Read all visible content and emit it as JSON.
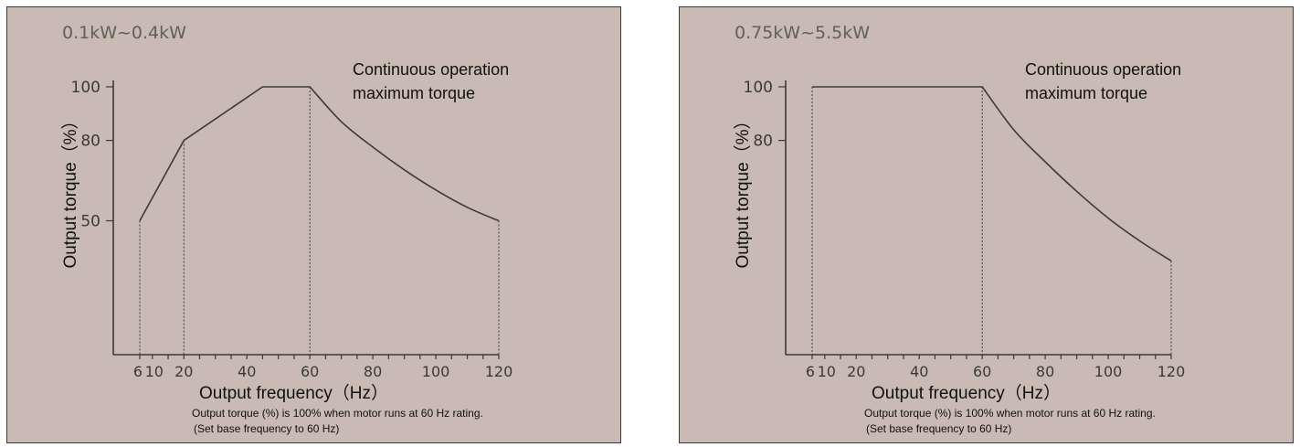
{
  "chart_data": [
    {
      "type": "line",
      "title": "0.1kW~0.4kW",
      "annotation": [
        "Continuous operation",
        "maximum torque"
      ],
      "xlabel": "Output frequency（Hz）",
      "ylabel": "Output torque（%）",
      "xticks": [
        6,
        10,
        20,
        40,
        60,
        80,
        100,
        120
      ],
      "yticks": [
        50,
        80,
        100
      ],
      "xlim": [
        0,
        120
      ],
      "ylim": [
        0,
        100
      ],
      "series": [
        {
          "x": [
            6,
            20,
            45,
            60,
            70,
            80,
            90,
            100,
            110,
            120
          ],
          "y": [
            50,
            80,
            100,
            100,
            87,
            77.5,
            69,
            61.5,
            55,
            50
          ]
        }
      ],
      "dotted_drops": [
        6,
        20,
        60,
        120
      ],
      "notes": [
        "Output torque (%) is 100% when motor runs at 60 Hz rating.",
        "(Set base frequency to 60 Hz)"
      ]
    },
    {
      "type": "line",
      "title": "0.75kW~5.5kW",
      "annotation": [
        "Continuous operation",
        "maximum torque"
      ],
      "xlabel": "Output frequency（Hz）",
      "ylabel": "Output torque（%）",
      "xticks": [
        6,
        10,
        20,
        40,
        60,
        80,
        100,
        120
      ],
      "yticks": [
        80,
        100
      ],
      "xlim": [
        0,
        120
      ],
      "ylim": [
        0,
        100
      ],
      "series": [
        {
          "x": [
            6,
            60,
            70,
            80,
            90,
            100,
            110,
            120
          ],
          "y": [
            100,
            100,
            84,
            72,
            61,
            51,
            42.5,
            35
          ]
        }
      ],
      "dotted_drops": [
        6,
        60,
        120
      ],
      "notes": [
        "Output torque (%) is 100% when motor runs at 60 Hz rating.",
        "(Set base frequency to 60 Hz)"
      ]
    }
  ]
}
